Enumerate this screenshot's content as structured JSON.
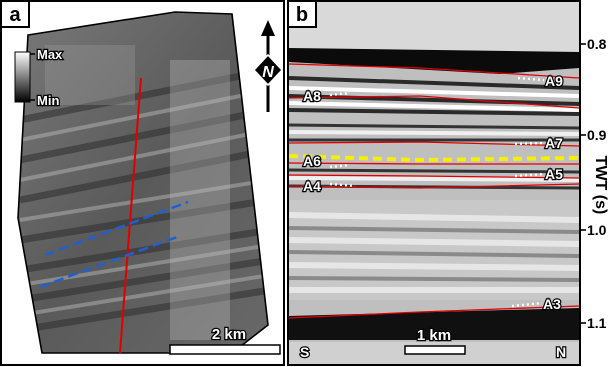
{
  "panel_a": {
    "label": "a",
    "colorbar": {
      "max_label": "Max",
      "min_label": "Min"
    },
    "north_label": "N",
    "scale_label": "2 km"
  },
  "panel_b": {
    "label": "b",
    "horizons": [
      "A9",
      "A8",
      "A7",
      "A6",
      "A5",
      "A4",
      "A3"
    ],
    "scale_label": "1 km",
    "left_end": "S",
    "right_end": "N"
  },
  "twt_axis": {
    "title": "TWT (s)",
    "ticks": [
      "0.8",
      "0.9",
      "1.0",
      "1.1"
    ]
  }
}
